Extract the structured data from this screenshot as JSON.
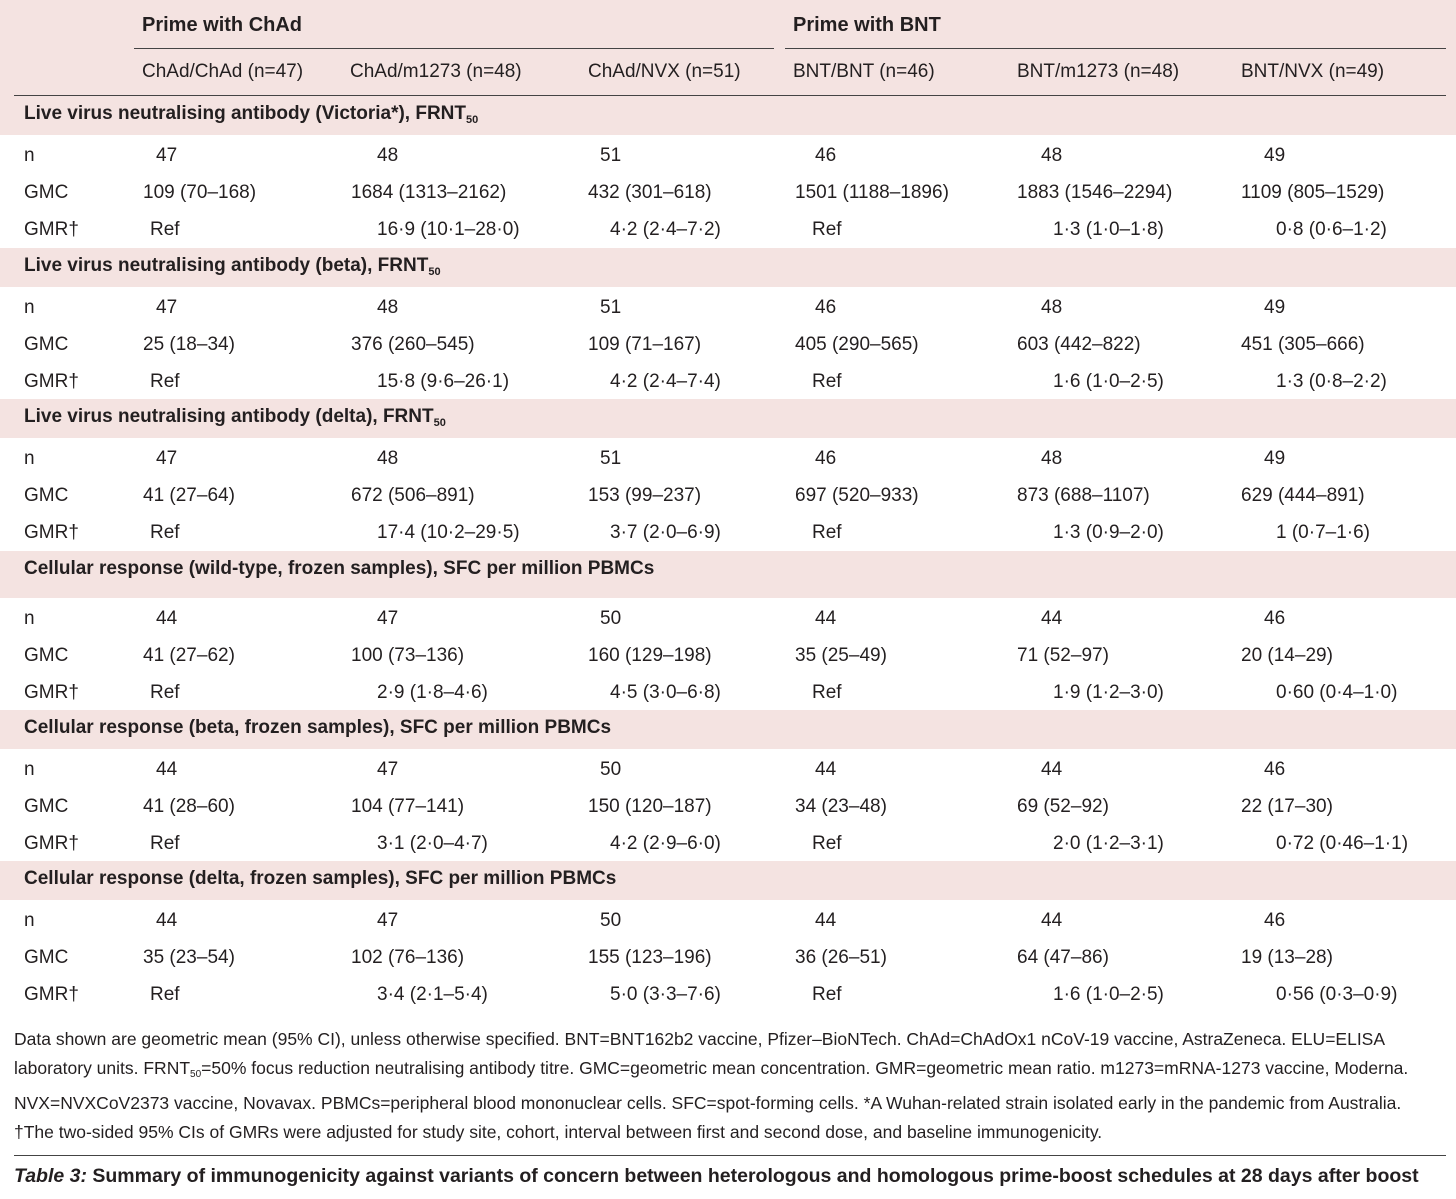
{
  "header": {
    "group_chad": "Prime with ChAd",
    "group_bnt": "Prime with BNT",
    "columns": [
      "ChAd/ChAd (n=47)",
      "ChAd/m1273 (n=48)",
      "ChAd/NVX (n=51)",
      "BNT/BNT (n=46)",
      "BNT/m1273 (n=48)",
      "BNT/NVX (n=49)"
    ]
  },
  "row_labels": {
    "n": "n",
    "gmc": "GMC",
    "gmr": "GMR†"
  },
  "sections": [
    {
      "title": "Live virus neutralising antibody (Victoria*), FRNT",
      "title_sub": "50",
      "n": [
        "47",
        "48",
        "51",
        "46",
        "48",
        "49"
      ],
      "gmc": [
        "109 (70–168)",
        "1684 (1313–2162)",
        "432 (301–618)",
        "1501 (1188–1896)",
        "1883 (1546–2294)",
        "1109 (805–1529)"
      ],
      "gmr": [
        "Ref",
        "16·9 (10·1–28·0)",
        "4·2 (2·4–7·2)",
        "Ref",
        "1·3 (1·0–1·8)",
        "0·8 (0·6–1·2)"
      ]
    },
    {
      "title": "Live virus neutralising antibody (beta), FRNT",
      "title_sub": "50",
      "n": [
        "47",
        "48",
        "51",
        "46",
        "48",
        "49"
      ],
      "gmc": [
        "25 (18–34)",
        "376 (260–545)",
        "109 (71–167)",
        "405 (290–565)",
        "603 (442–822)",
        "451 (305–666)"
      ],
      "gmr": [
        "Ref",
        "15·8 (9·6–26·1)",
        "4·2 (2·4–7·4)",
        "Ref",
        "1·6 (1·0–2·5)",
        "1·3 (0·8–2·2)"
      ]
    },
    {
      "title": "Live virus neutralising antibody (delta), FRNT",
      "title_sub": "50",
      "n": [
        "47",
        "48",
        "51",
        "46",
        "48",
        "49"
      ],
      "gmc": [
        "41 (27–64)",
        "672 (506–891)",
        "153 (99–237)",
        "697 (520–933)",
        "873 (688–1107)",
        "629 (444–891)"
      ],
      "gmr": [
        "Ref",
        "17·4 (10·2–29·5)",
        "3·7 (2·0–6·9)",
        "Ref",
        "1·3 (0·9–2·0)",
        "1 (0·7–1·6)"
      ]
    },
    {
      "title": "Cellular response (wild-type, frozen samples), SFC per million PBMCs",
      "title_sub": "",
      "n": [
        "44",
        "47",
        "50",
        "44",
        "44",
        "46"
      ],
      "gmc": [
        "41 (27–62)",
        "100 (73–136)",
        "160 (129–198)",
        "35 (25–49)",
        "71 (52–97)",
        "20 (14–29)"
      ],
      "gmr": [
        "Ref",
        "2·9 (1·8–4·6)",
        "4·5 (3·0–6·8)",
        "Ref",
        "1·9 (1·2–3·0)",
        "0·60 (0·4–1·0)"
      ]
    },
    {
      "title": "Cellular response (beta, frozen samples), SFC per million PBMCs",
      "title_sub": "",
      "n": [
        "44",
        "47",
        "50",
        "44",
        "44",
        "46"
      ],
      "gmc": [
        "41 (28–60)",
        "104 (77–141)",
        "150 (120–187)",
        "34 (23–48)",
        "69 (52–92)",
        "22 (17–30)"
      ],
      "gmr": [
        "Ref",
        "3·1 (2·0–4·7)",
        "4·2 (2·9–6·0)",
        "Ref",
        "2·0 (1·2–3·1)",
        "0·72 (0·46–1·1)"
      ]
    },
    {
      "title": "Cellular response (delta, frozen samples), SFC per million PBMCs",
      "title_sub": "",
      "n": [
        "44",
        "47",
        "50",
        "44",
        "44",
        "46"
      ],
      "gmc": [
        "35 (23–54)",
        "102 (76–136)",
        "155 (123–196)",
        "36 (26–51)",
        "64 (47–86)",
        "19 (13–28)"
      ],
      "gmr": [
        "Ref",
        "3·4 (2·1–5·4)",
        "5·0 (3·3–7·6)",
        "Ref",
        "1·6 (1·0–2·5)",
        "0·56 (0·3–0·9)"
      ]
    }
  ],
  "footnote": {
    "part1": "Data shown are geometric mean (95% CI), unless otherwise specified. BNT=BNT162b2 vaccine, Pfizer–BioNTech. ChAd=ChAdOx1 nCoV-19 vaccine, AstraZeneca. ELU=ELISA laboratory units. FRNT",
    "sub": "50",
    "part2": "=50% focus reduction neutralising antibody titre. GMC=geometric mean concentration. GMR=geometric mean ratio. m1273=mRNA-1273 vaccine, Moderna. NVX=NVXCoV2373 vaccine, Novavax. PBMCs=peripheral blood mononuclear cells. SFC=spot-forming cells. *A Wuhan-related strain isolated early in the pandemic from Australia. †The two-sided 95% CIs of GMRs were adjusted for study site, cohort, interval between first and second dose, and baseline immunogenicity."
  },
  "caption": {
    "label": "Table 3:",
    "text": " Summary of immunogenicity against variants of concern between heterologous and homologous prime-boost schedules at 28 days after boost"
  }
}
